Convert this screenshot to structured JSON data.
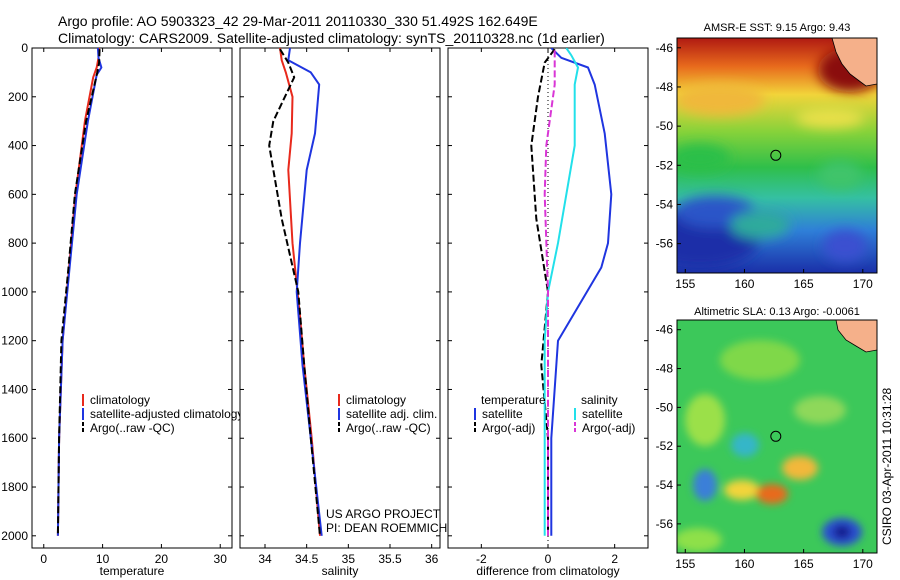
{
  "header": {
    "line1": "Argo profile: AO 5903323_42 29-Mar-2011 20110330_330 51.492S 162.649E",
    "line2": "Climatology: CARS2009. Satellite-adjusted climatology: synTS_20110328.nc (1d earlier)"
  },
  "credit": {
    "project": "US ARGO PROJECT",
    "pi": "PI: DEAN ROEMMICH",
    "stamp": "CSIRO 03-Apr-2011 10:31:28"
  },
  "colors": {
    "climatology": "#e8291c",
    "satellite": "#1f35e0",
    "argo": "#000000",
    "satellite_salinity": "#22e0ea",
    "argo_adj_salinity": "#d936d6",
    "land": "#f5b08a"
  },
  "chart_data": [
    {
      "type": "line",
      "xlabel": "temperature",
      "ylabel": "",
      "xlim": [
        -2,
        32
      ],
      "ylim": [
        2050,
        0
      ],
      "x_ticks": [
        0,
        10,
        20,
        30
      ],
      "y_ticks": [
        0,
        200,
        400,
        600,
        800,
        1000,
        1200,
        1400,
        1600,
        1800,
        2000
      ],
      "legend": [
        "climatology",
        "satellite-adjusted climatology",
        "Argo(..raw -QC)"
      ],
      "legend_location": "lower-right",
      "series": [
        {
          "name": "climatology",
          "color": "#e8291c",
          "style": "solid",
          "depth": [
            0,
            40,
            80,
            120,
            300,
            600,
            900,
            1200,
            1600,
            2000
          ],
          "values": [
            9.4,
            9.3,
            9.0,
            8.4,
            7.0,
            5.4,
            4.3,
            3.2,
            2.6,
            2.4
          ]
        },
        {
          "name": "satellite-adjusted climatology",
          "color": "#1f35e0",
          "style": "solid",
          "depth": [
            0,
            40,
            80,
            110,
            300,
            600,
            900,
            1200,
            1600,
            2000
          ],
          "values": [
            9.2,
            9.3,
            9.8,
            9.0,
            7.5,
            5.6,
            4.4,
            3.2,
            2.6,
            2.4
          ]
        },
        {
          "name": "Argo(..raw -QC)",
          "color": "#000000",
          "style": "dashed",
          "depth": [
            5,
            60,
            100,
            300,
            600,
            900,
            1200,
            1600,
            2000
          ],
          "values": [
            9.5,
            9.4,
            9.1,
            7.2,
            5.3,
            4.2,
            3.0,
            2.6,
            2.4
          ]
        }
      ]
    },
    {
      "type": "line",
      "xlabel": "salinity",
      "ylabel": "",
      "xlim": [
        33.7,
        36.1
      ],
      "ylim": [
        2050,
        0
      ],
      "x_ticks": [
        34,
        34.5,
        35,
        35.5,
        36
      ],
      "legend": [
        "climatology",
        "satellite adj. clim.",
        "Argo(..raw -QC)"
      ],
      "legend_location": "lower-right",
      "series": [
        {
          "name": "climatology",
          "color": "#e8291c",
          "style": "solid",
          "depth": [
            0,
            50,
            100,
            200,
            350,
            500,
            800,
            1100,
            1300,
            1600,
            2000
          ],
          "values": [
            34.18,
            34.2,
            34.25,
            34.33,
            34.32,
            34.28,
            34.33,
            34.42,
            34.47,
            34.56,
            34.66
          ]
        },
        {
          "name": "satellite adj. clim.",
          "color": "#1f35e0",
          "style": "solid",
          "depth": [
            0,
            50,
            100,
            150,
            350,
            500,
            800,
            1000,
            1300,
            1600,
            2000
          ],
          "values": [
            34.3,
            34.28,
            34.55,
            34.65,
            34.6,
            34.5,
            34.42,
            34.38,
            34.45,
            34.55,
            34.68
          ]
        },
        {
          "name": "Argo(..raw -QC)",
          "color": "#000000",
          "style": "dashed",
          "depth": [
            5,
            60,
            120,
            300,
            400,
            700,
            1000,
            1300,
            1600,
            2000
          ],
          "values": [
            34.18,
            34.28,
            34.35,
            34.1,
            34.05,
            34.2,
            34.4,
            34.47,
            34.55,
            34.66
          ]
        }
      ]
    },
    {
      "type": "line",
      "xlabel": "difference from climatology",
      "ylabel": "",
      "xlim": [
        -3,
        3
      ],
      "ylim": [
        2050,
        0
      ],
      "x_ticks": [
        -2,
        0,
        2
      ],
      "legend": [
        "temperature",
        "satellite",
        "Argo(-adj)",
        "salinity",
        "satellite",
        "Argo(-adj)"
      ],
      "legend_location": "lower-center",
      "series": [
        {
          "name": "satellite",
          "color": "#1f35e0",
          "style": "solid",
          "depth": [
            0,
            40,
            80,
            150,
            350,
            600,
            800,
            900,
            1200,
            1600,
            2000
          ],
          "values": [
            0.1,
            0.4,
            1.2,
            1.4,
            1.7,
            1.9,
            1.8,
            1.6,
            0.3,
            0.1,
            0.1
          ]
        },
        {
          "name": "Argo(-adj)",
          "color": "#000000",
          "style": "dashed",
          "depth": [
            5,
            60,
            200,
            400,
            700,
            1000,
            1300,
            1600,
            2000
          ],
          "values": [
            0.2,
            -0.1,
            -0.3,
            -0.5,
            -0.35,
            0.0,
            -0.2,
            0.0,
            0.0
          ]
        },
        {
          "name": "satellite",
          "color": "#22e0ea",
          "style": "solid",
          "depth": [
            0,
            30,
            80,
            150,
            400,
            800,
            1000,
            1200,
            1600,
            2000
          ],
          "values": [
            0.55,
            0.7,
            0.9,
            0.8,
            0.8,
            0.3,
            0.0,
            -0.1,
            -0.1,
            -0.1
          ]
        },
        {
          "name": "Argo(-adj)",
          "color": "#d936d6",
          "style": "dashed",
          "depth": [
            10,
            150,
            400,
            600,
            1000,
            1400,
            1800,
            2000
          ],
          "values": [
            0.2,
            0.2,
            -0.05,
            -0.1,
            0.0,
            0.0,
            0.0,
            0.0
          ]
        }
      ]
    },
    {
      "type": "heatmap",
      "title": "AMSR-E SST: 9.15 Argo: 9.43",
      "x_ticks": [
        155,
        160,
        165,
        170
      ],
      "y_ticks": [
        -46,
        -48,
        -50,
        -52,
        -54,
        -56
      ],
      "xlim": [
        154.3,
        171.2
      ],
      "ylim": [
        -57.5,
        -45.5
      ],
      "argo_location": [
        162.649,
        -51.492
      ]
    },
    {
      "type": "heatmap",
      "title": "Altimetric SLA: 0.13 Argo: -0.0061",
      "x_ticks": [
        155,
        160,
        165,
        170
      ],
      "y_ticks": [
        -46,
        -48,
        -50,
        -52,
        -54,
        -56
      ],
      "xlim": [
        154.3,
        171.2
      ],
      "ylim": [
        -57.5,
        -45.5
      ],
      "argo_location": [
        162.649,
        -51.492
      ]
    }
  ]
}
